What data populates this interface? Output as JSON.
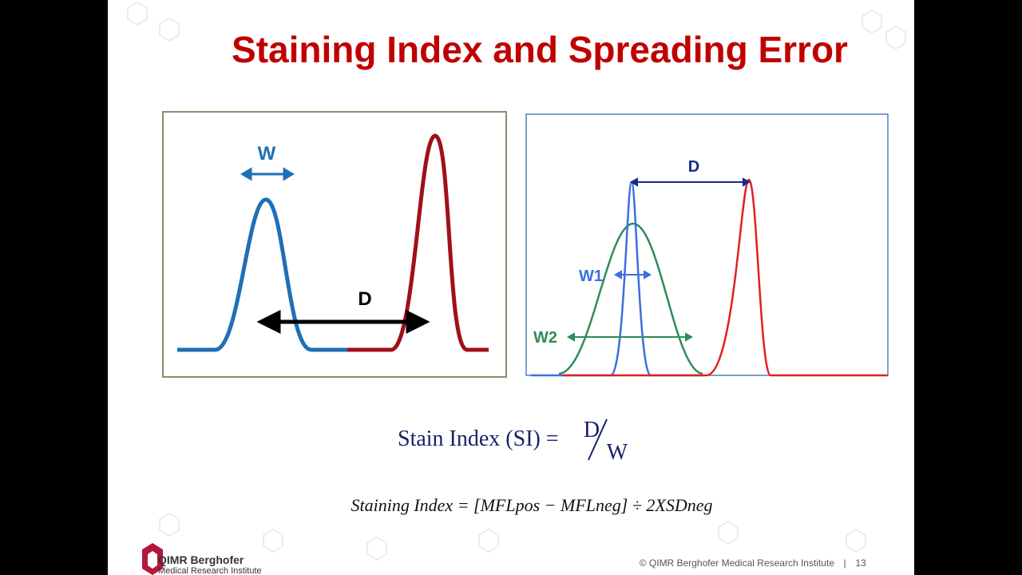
{
  "title": "Staining Index and Spreading Error",
  "left_diagram": {
    "labels": [
      "W",
      "D"
    ]
  },
  "right_diagram": {
    "labels": [
      "D",
      "W1",
      "W2"
    ]
  },
  "formula": {
    "lhs": "Stain Index (SI) =",
    "numerator": "D",
    "denominator": "W"
  },
  "formula_expanded": "Staining Index = [MFLpos − MFLneg] ÷ 2XSDneg",
  "footer": {
    "logo_name": "QIMR Berghofer",
    "logo_subtitle": "Medical Research Institute",
    "copyright": "© QIMR Berghofer Medical Research Institute",
    "separator": "|",
    "page_number": "13"
  }
}
